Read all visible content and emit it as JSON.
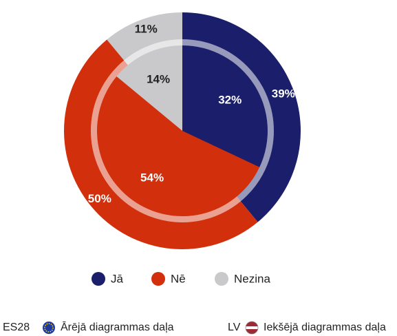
{
  "chart_data": {
    "type": "pie",
    "categories": [
      "Jā",
      "Nē",
      "Nezina"
    ],
    "colors": [
      "#1b1f6b",
      "#d22f0c",
      "#c9c9cc"
    ],
    "series": [
      {
        "name": "ES28",
        "description": "Ārējā diagrammas daļa",
        "values": [
          39,
          50,
          11
        ],
        "value_labels": [
          "39%",
          "50%",
          "11%"
        ]
      },
      {
        "name": "LV",
        "description": "Iekšējā diagrammas daļa",
        "values": [
          32,
          54,
          14
        ],
        "value_labels": [
          "32%",
          "54%",
          "14%"
        ]
      }
    ]
  }
}
